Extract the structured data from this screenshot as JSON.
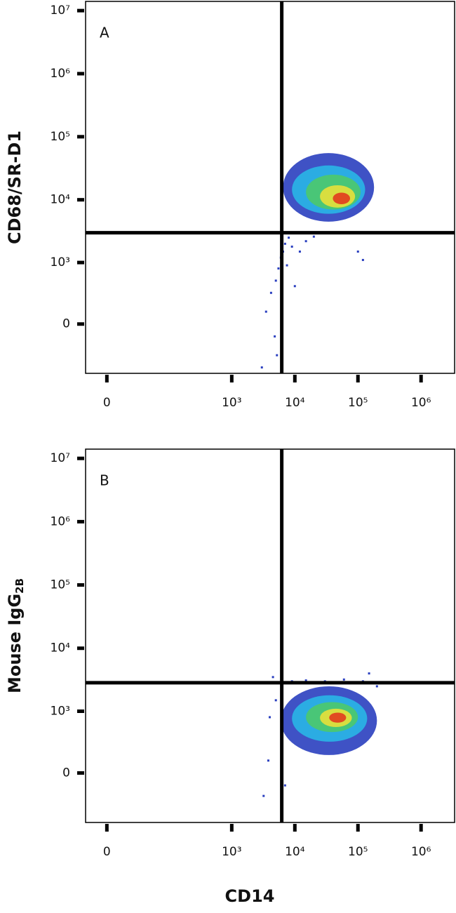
{
  "chart_data": [
    {
      "type": "density",
      "panel_label": "A",
      "ylabel": "CD68/SR-D1",
      "xlim": [
        -18,
        3400000
      ],
      "ylim": [
        -630,
        14000000
      ],
      "xticks": [
        0,
        {
          "value": 1000,
          "label": "10³"
        },
        {
          "value": 10000,
          "label": "10⁴"
        },
        {
          "value": 100000,
          "label": "10⁵"
        },
        {
          "value": 1000000,
          "label": "10⁶"
        }
      ],
      "yticks": [
        0,
        {
          "value": 1000,
          "label": "10³"
        },
        {
          "value": 10000,
          "label": "10⁴"
        },
        {
          "value": 100000,
          "label": "10⁵"
        },
        {
          "value": 1000000,
          "label": "10⁶"
        },
        {
          "value": 10000000,
          "label": "10⁷"
        }
      ],
      "quadrant_x": 6200,
      "quadrant_y": 3000,
      "contours": [
        {
          "color": "#2a3fbf",
          "x": [
            6500,
            180000
          ],
          "y": [
            4500,
            55000
          ]
        },
        {
          "color": "#29b6e6",
          "x": [
            9000,
            130000
          ],
          "y": [
            6000,
            35000
          ]
        },
        {
          "color": "#4cc96a",
          "x": [
            15000,
            110000
          ],
          "y": [
            7000,
            25000
          ]
        },
        {
          "color": "#e8e03a",
          "x": [
            25000,
            90000
          ],
          "y": [
            7500,
            17000
          ]
        },
        {
          "color": "#e23b1e",
          "x": [
            40000,
            75000
          ],
          "y": [
            8500,
            13000
          ]
        }
      ],
      "points": {
        "color": "#2a3fbf",
        "x": [
          3500,
          4200,
          5000,
          5500,
          6000,
          6500,
          7000,
          8000,
          9000,
          12000,
          15000,
          4800,
          5200,
          6300,
          100000,
          120000,
          3000,
          7500,
          10000,
          20000
        ],
        "y": [
          100,
          300,
          500,
          800,
          1200,
          1500,
          2000,
          2500,
          1800,
          1500,
          2200,
          -100,
          -300,
          600,
          1500,
          1100,
          -500,
          900,
          400,
          2600
        ]
      }
    },
    {
      "type": "density",
      "panel_label": "B",
      "ylabel": "Mouse IgG",
      "ylabel_sub": "2B",
      "xlabel": "CD14",
      "xlim": [
        -18,
        3400000
      ],
      "ylim": [
        -630,
        14000000
      ],
      "xticks": [
        0,
        {
          "value": 1000,
          "label": "10³"
        },
        {
          "value": 10000,
          "label": "10⁴"
        },
        {
          "value": 100000,
          "label": "10⁵"
        },
        {
          "value": 1000000,
          "label": "10⁶"
        }
      ],
      "yticks": [
        0,
        {
          "value": 1000,
          "label": "10³"
        },
        {
          "value": 10000,
          "label": "10⁴"
        },
        {
          "value": 100000,
          "label": "10⁵"
        },
        {
          "value": 1000000,
          "label": "10⁶"
        },
        {
          "value": 10000000,
          "label": "10⁷"
        }
      ],
      "quadrant_x": 6200,
      "quadrant_y": 2850,
      "contours": [
        {
          "color": "#2a3fbf",
          "x": [
            6000,
            200000
          ],
          "y": [
            150,
            2500
          ]
        },
        {
          "color": "#29b6e6",
          "x": [
            9000,
            140000
          ],
          "y": [
            300,
            1800
          ]
        },
        {
          "color": "#4cc96a",
          "x": [
            15000,
            100000
          ],
          "y": [
            450,
            1400
          ]
        },
        {
          "color": "#e8e03a",
          "x": [
            25000,
            80000
          ],
          "y": [
            550,
            1100
          ]
        },
        {
          "color": "#e23b1e",
          "x": [
            35000,
            65000
          ],
          "y": [
            650,
            950
          ]
        }
      ],
      "points": {
        "color": "#2a3fbf",
        "x": [
          3200,
          3800,
          4500,
          5500,
          9000,
          15000,
          30000,
          60000,
          120000,
          150000,
          5000,
          200000,
          4000,
          7000
        ],
        "y": [
          -200,
          100,
          3500,
          2900,
          3000,
          3100,
          3000,
          3200,
          3000,
          4000,
          1500,
          2500,
          800,
          -100
        ]
      }
    }
  ]
}
